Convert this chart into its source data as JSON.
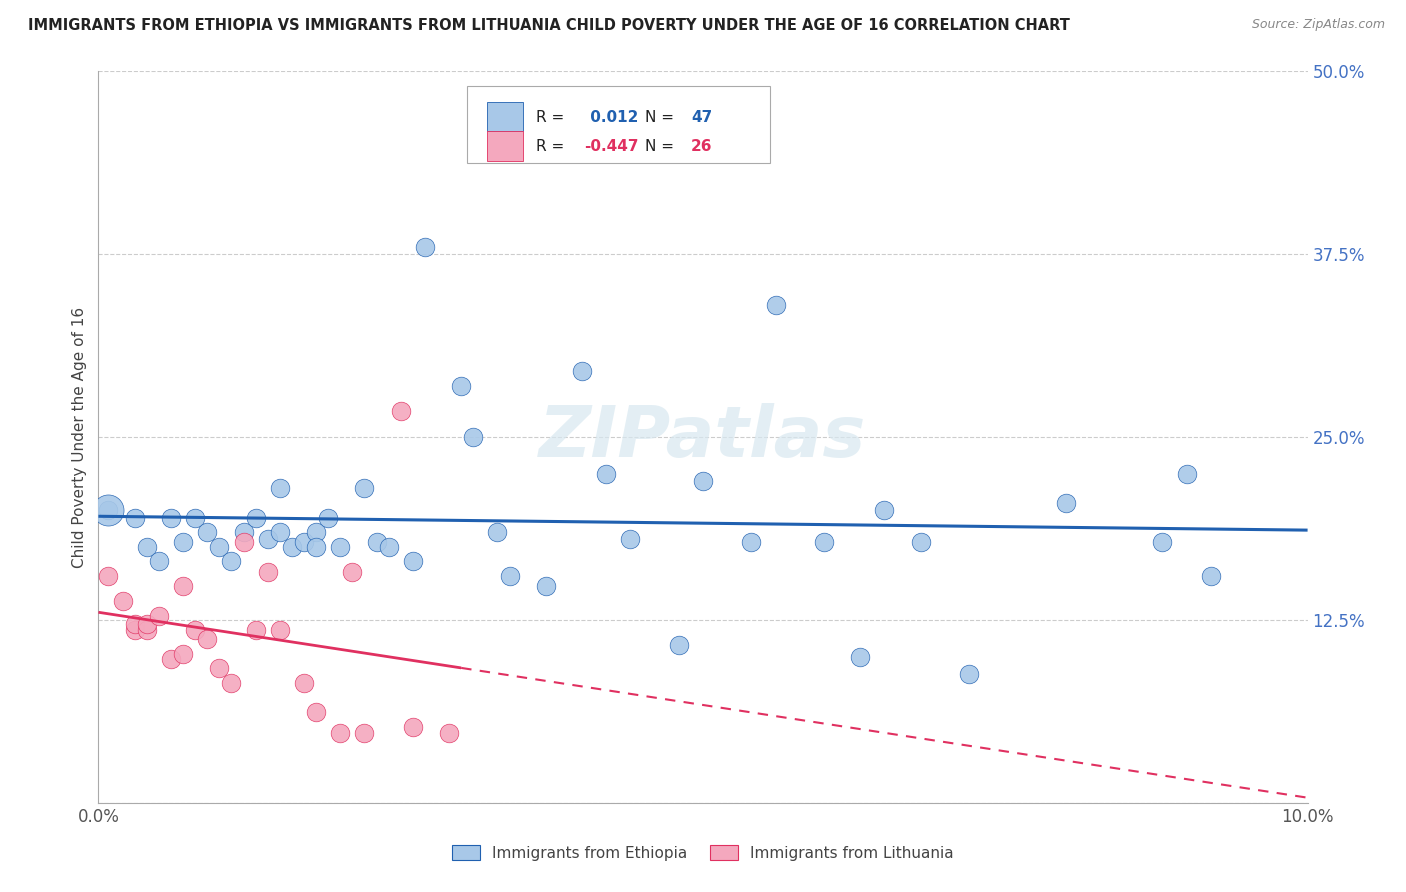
{
  "title": "IMMIGRANTS FROM ETHIOPIA VS IMMIGRANTS FROM LITHUANIA CHILD POVERTY UNDER THE AGE OF 16 CORRELATION CHART",
  "source": "Source: ZipAtlas.com",
  "ylabel": "Child Poverty Under the Age of 16",
  "xlabel_ethiopia": "Immigrants from Ethiopia",
  "xlabel_lithuania": "Immigrants from Lithuania",
  "r_ethiopia": 0.012,
  "n_ethiopia": 47,
  "r_lithuania": -0.447,
  "n_lithuania": 26,
  "xlim": [
    0.0,
    0.1
  ],
  "ylim": [
    0.0,
    0.5
  ],
  "color_ethiopia": "#a8c8e8",
  "color_lithuania": "#f4a8be",
  "line_color_ethiopia": "#2060b0",
  "line_color_lithuania": "#e03060",
  "background_color": "#ffffff",
  "ethiopia_x": [
    0.0008,
    0.003,
    0.004,
    0.005,
    0.006,
    0.007,
    0.008,
    0.009,
    0.01,
    0.011,
    0.012,
    0.013,
    0.014,
    0.015,
    0.015,
    0.016,
    0.017,
    0.018,
    0.018,
    0.019,
    0.02,
    0.022,
    0.023,
    0.024,
    0.026,
    0.027,
    0.03,
    0.031,
    0.033,
    0.034,
    0.037,
    0.04,
    0.042,
    0.044,
    0.048,
    0.05,
    0.054,
    0.056,
    0.06,
    0.063,
    0.065,
    0.068,
    0.072,
    0.08,
    0.088,
    0.09,
    0.092
  ],
  "ethiopia_y": [
    0.2,
    0.195,
    0.175,
    0.165,
    0.195,
    0.178,
    0.195,
    0.185,
    0.175,
    0.165,
    0.185,
    0.195,
    0.18,
    0.215,
    0.185,
    0.175,
    0.178,
    0.185,
    0.175,
    0.195,
    0.175,
    0.215,
    0.178,
    0.175,
    0.165,
    0.38,
    0.285,
    0.25,
    0.185,
    0.155,
    0.148,
    0.295,
    0.225,
    0.18,
    0.108,
    0.22,
    0.178,
    0.34,
    0.178,
    0.1,
    0.2,
    0.178,
    0.088,
    0.205,
    0.178,
    0.225,
    0.155
  ],
  "lithuania_x": [
    0.0008,
    0.002,
    0.003,
    0.003,
    0.004,
    0.004,
    0.005,
    0.006,
    0.007,
    0.007,
    0.008,
    0.009,
    0.01,
    0.011,
    0.012,
    0.013,
    0.014,
    0.015,
    0.017,
    0.018,
    0.02,
    0.021,
    0.022,
    0.025,
    0.026,
    0.029
  ],
  "lithuania_y": [
    0.155,
    0.138,
    0.118,
    0.122,
    0.118,
    0.122,
    0.128,
    0.098,
    0.102,
    0.148,
    0.118,
    0.112,
    0.092,
    0.082,
    0.178,
    0.118,
    0.158,
    0.118,
    0.082,
    0.062,
    0.048,
    0.158,
    0.048,
    0.268,
    0.052,
    0.048
  ]
}
